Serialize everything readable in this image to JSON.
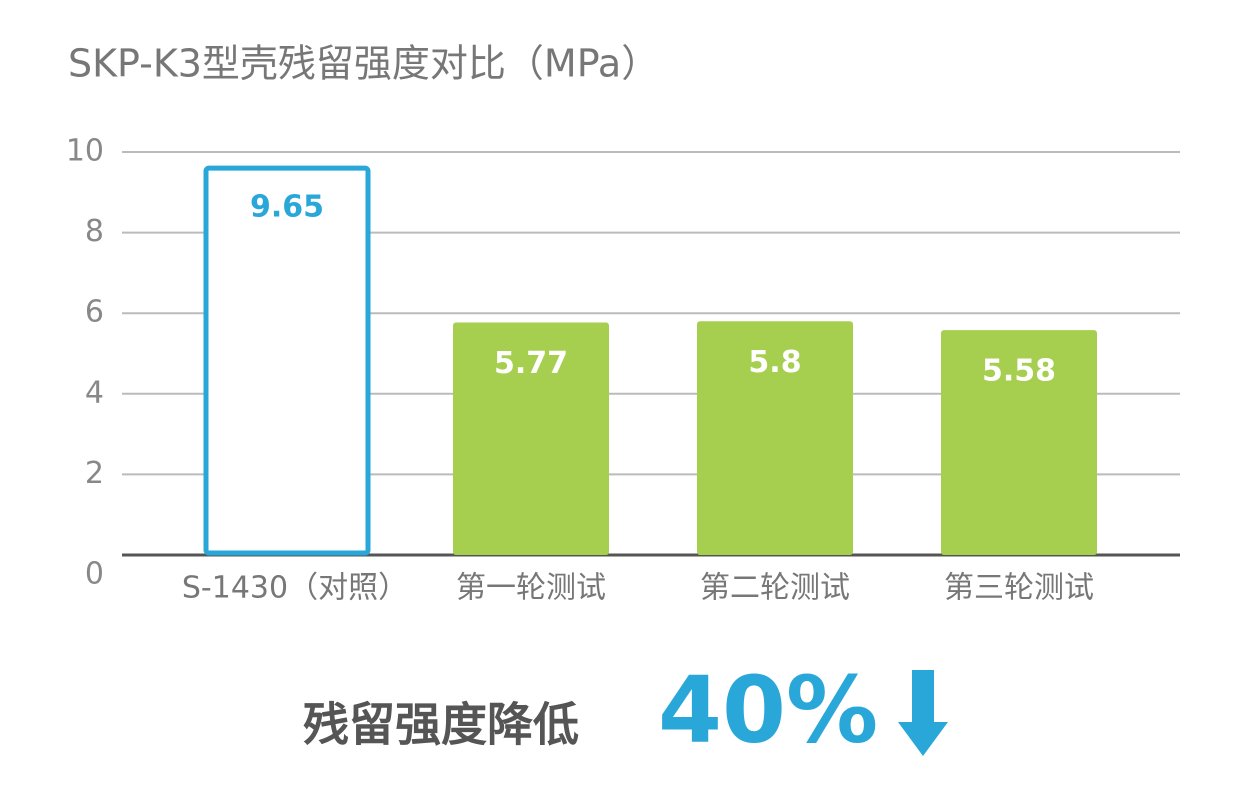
{
  "chart_data": {
    "type": "bar",
    "title": "SKP-K3型壳残留强度对比（MPa）",
    "categories": [
      "S-1430（对照）",
      "第一轮测试",
      "第二轮测试",
      "第三轮测试"
    ],
    "values": [
      9.65,
      5.77,
      5.8,
      5.58
    ],
    "colors": [
      "#2aa7d9",
      "#a6cf4f",
      "#a6cf4f",
      "#a6cf4f"
    ],
    "bar_styles": [
      "outline",
      "filled",
      "filled",
      "filled"
    ],
    "ylim": [
      0,
      10
    ],
    "yticks": [
      0,
      2,
      4,
      6,
      8,
      10
    ],
    "grid": true,
    "annotation": {
      "text": "残留强度降低",
      "highlight": "40%",
      "highlight_color": "#2aa7d9"
    }
  }
}
